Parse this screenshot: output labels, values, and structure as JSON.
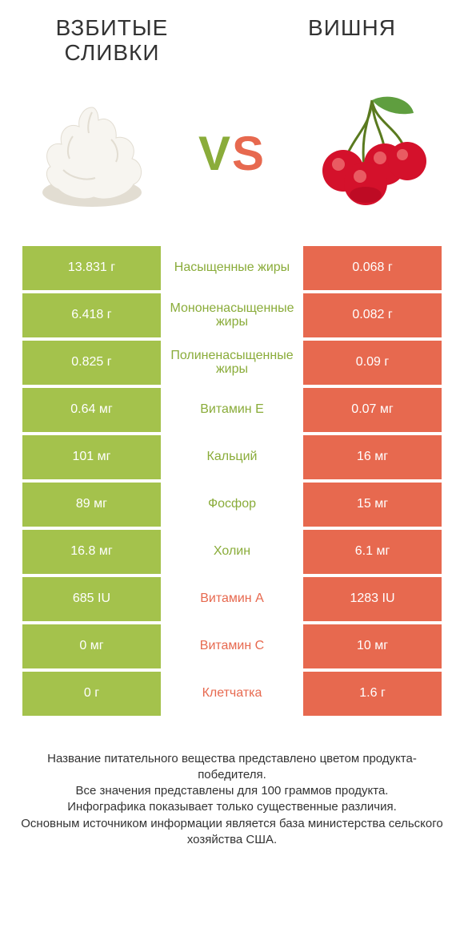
{
  "header": {
    "left_title": "ВЗБИТЫЕ СЛИВКИ",
    "right_title": "ВИШНЯ",
    "vs_v": "V",
    "vs_s": "S"
  },
  "colors": {
    "green": "#a4c24c",
    "green_text": "#8aac3a",
    "orange": "#e7694f",
    "cream_body": "#f7f5f0",
    "cream_shadow": "#e2ddd2",
    "cherry_red": "#d4112b",
    "cherry_highlight": "#f27b7b",
    "cherry_dark": "#8a0015",
    "cherry_stem": "#5a7a1f",
    "cherry_leaf": "#5f9e3f"
  },
  "table": {
    "rows": [
      {
        "left": "13.831 г",
        "label": "Насыщенные жиры",
        "right": "0.068 г",
        "winner": "left"
      },
      {
        "left": "6.418 г",
        "label": "Мононенасыщенные жиры",
        "right": "0.082 г",
        "winner": "left"
      },
      {
        "left": "0.825 г",
        "label": "Полиненасыщенные жиры",
        "right": "0.09 г",
        "winner": "left"
      },
      {
        "left": "0.64 мг",
        "label": "Витамин E",
        "right": "0.07 мг",
        "winner": "left"
      },
      {
        "left": "101 мг",
        "label": "Кальций",
        "right": "16 мг",
        "winner": "left"
      },
      {
        "left": "89 мг",
        "label": "Фосфор",
        "right": "15 мг",
        "winner": "left"
      },
      {
        "left": "16.8 мг",
        "label": "Холин",
        "right": "6.1 мг",
        "winner": "left"
      },
      {
        "left": "685 IU",
        "label": "Витамин A",
        "right": "1283 IU",
        "winner": "right"
      },
      {
        "left": "0 мг",
        "label": "Витамин C",
        "right": "10 мг",
        "winner": "right"
      },
      {
        "left": "0 г",
        "label": "Клетчатка",
        "right": "1.6 г",
        "winner": "right"
      }
    ]
  },
  "footer": {
    "line1": "Название питательного вещества представлено цветом продукта-победителя.",
    "line2": "Все значения представлены для 100 граммов продукта.",
    "line3": "Инфографика показывает только существенные различия.",
    "line4": "Основным источником информации является база министерства сельского хозяйства США."
  }
}
